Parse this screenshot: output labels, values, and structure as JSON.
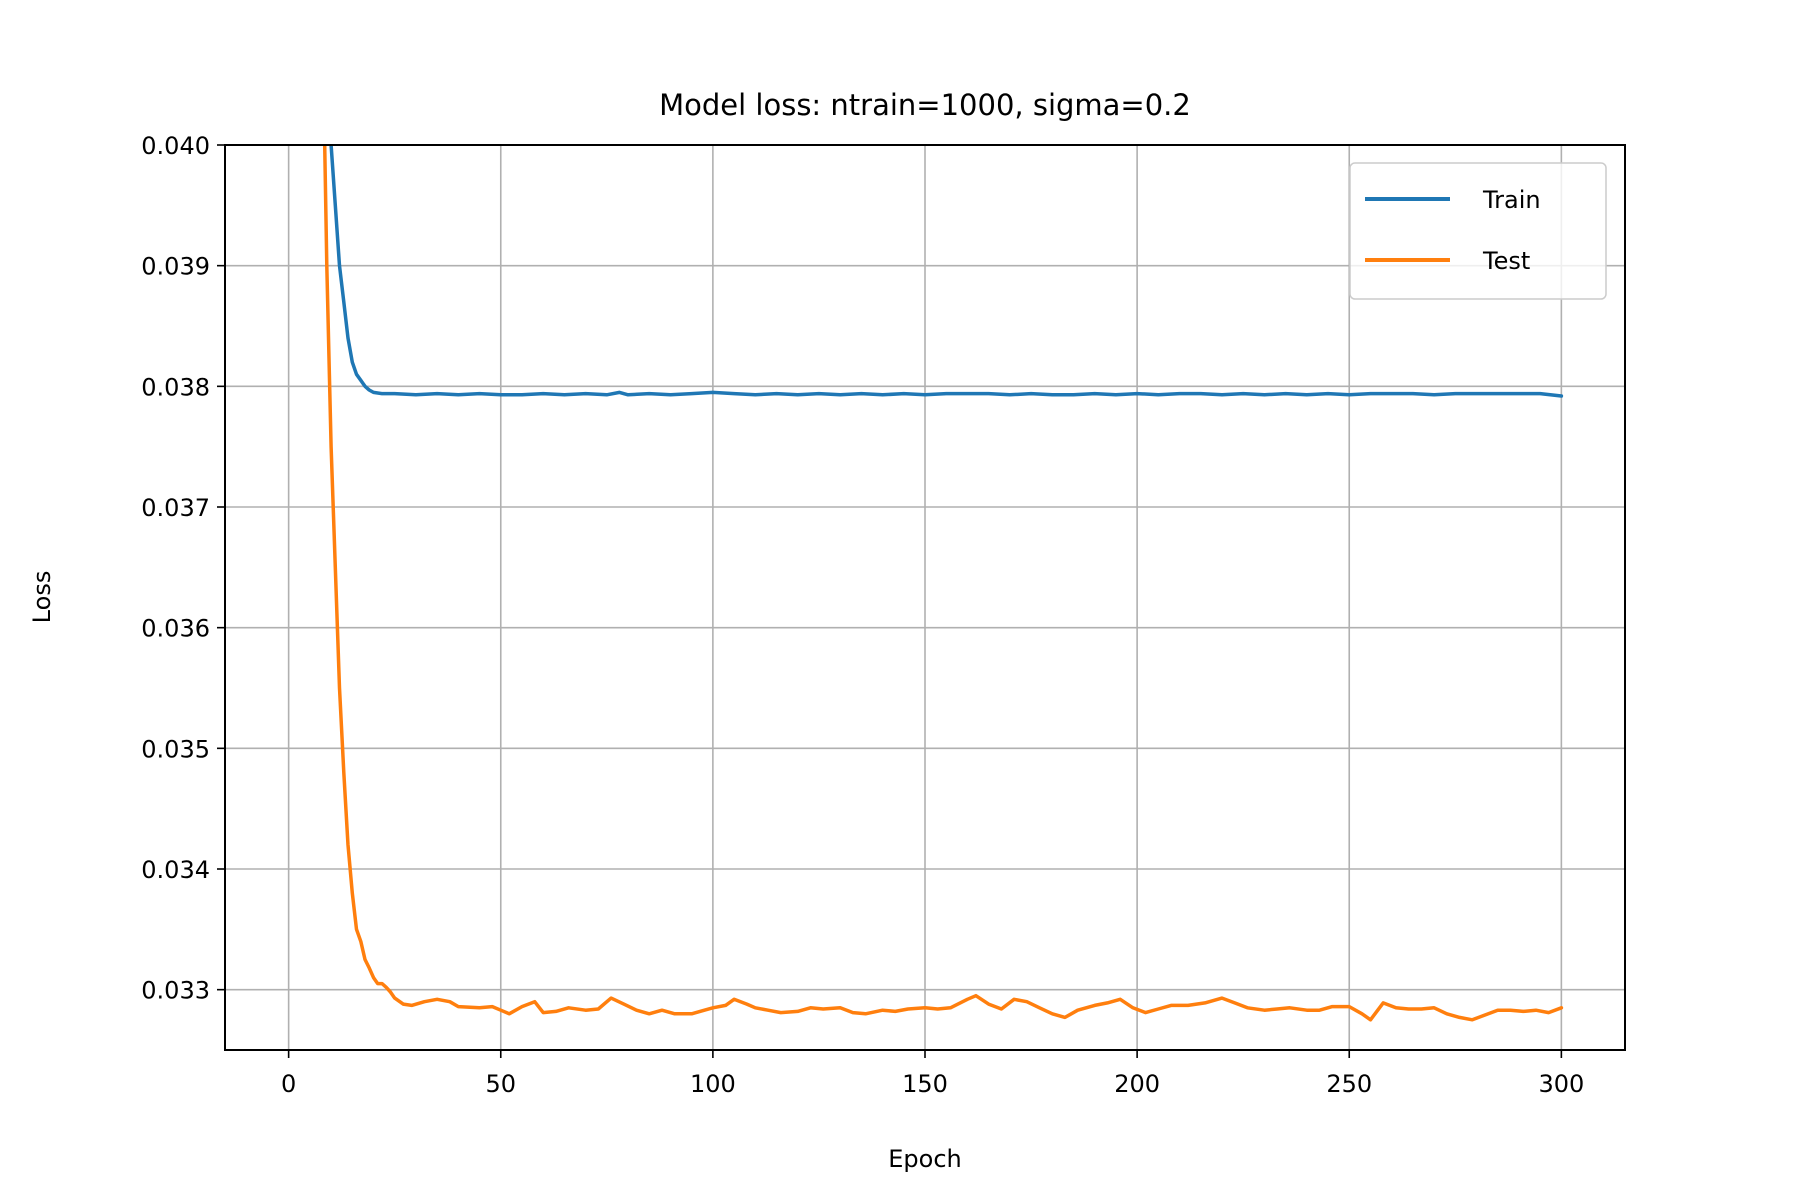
{
  "chart_data": {
    "type": "line",
    "title": "Model loss: ntrain=1000, sigma=0.2",
    "xlabel": "Epoch",
    "ylabel": "Loss",
    "xlim": [
      -15,
      315
    ],
    "ylim": [
      0.0325,
      0.04
    ],
    "xticks": [
      0,
      50,
      100,
      150,
      200,
      250,
      300
    ],
    "xtick_labels": [
      "0",
      "50",
      "100",
      "150",
      "200",
      "250",
      "300"
    ],
    "yticks": [
      0.033,
      0.034,
      0.035,
      0.036,
      0.037,
      0.038,
      0.039,
      0.04
    ],
    "ytick_labels": [
      "0.033",
      "0.034",
      "0.035",
      "0.036",
      "0.037",
      "0.038",
      "0.039",
      "0.040"
    ],
    "grid": true,
    "legend_position": "top-right",
    "series": [
      {
        "name": "Train",
        "color": "#1f77b4",
        "points": [
          [
            9,
            0.041
          ],
          [
            10,
            0.04
          ],
          [
            11,
            0.0395
          ],
          [
            12,
            0.039
          ],
          [
            13,
            0.0387
          ],
          [
            14,
            0.0384
          ],
          [
            15,
            0.0382
          ],
          [
            16,
            0.0381
          ],
          [
            17,
            0.03805
          ],
          [
            18,
            0.038
          ],
          [
            19,
            0.03797
          ],
          [
            20,
            0.03795
          ],
          [
            22,
            0.03794
          ],
          [
            25,
            0.03794
          ],
          [
            30,
            0.03793
          ],
          [
            35,
            0.03794
          ],
          [
            40,
            0.03793
          ],
          [
            45,
            0.03794
          ],
          [
            50,
            0.03793
          ],
          [
            55,
            0.03793
          ],
          [
            60,
            0.03794
          ],
          [
            65,
            0.03793
          ],
          [
            70,
            0.03794
          ],
          [
            75,
            0.03793
          ],
          [
            78,
            0.03795
          ],
          [
            80,
            0.03793
          ],
          [
            85,
            0.03794
          ],
          [
            90,
            0.03793
          ],
          [
            95,
            0.03794
          ],
          [
            100,
            0.03795
          ],
          [
            105,
            0.03794
          ],
          [
            110,
            0.03793
          ],
          [
            115,
            0.03794
          ],
          [
            120,
            0.03793
          ],
          [
            125,
            0.03794
          ],
          [
            130,
            0.03793
          ],
          [
            135,
            0.03794
          ],
          [
            140,
            0.03793
          ],
          [
            145,
            0.03794
          ],
          [
            150,
            0.03793
          ],
          [
            155,
            0.03794
          ],
          [
            160,
            0.03794
          ],
          [
            165,
            0.03794
          ],
          [
            170,
            0.03793
          ],
          [
            175,
            0.03794
          ],
          [
            180,
            0.03793
          ],
          [
            185,
            0.03793
          ],
          [
            190,
            0.03794
          ],
          [
            195,
            0.03793
          ],
          [
            200,
            0.03794
          ],
          [
            205,
            0.03793
          ],
          [
            210,
            0.03794
          ],
          [
            215,
            0.03794
          ],
          [
            220,
            0.03793
          ],
          [
            225,
            0.03794
          ],
          [
            230,
            0.03793
          ],
          [
            235,
            0.03794
          ],
          [
            240,
            0.03793
          ],
          [
            245,
            0.03794
          ],
          [
            250,
            0.03793
          ],
          [
            255,
            0.03794
          ],
          [
            260,
            0.03794
          ],
          [
            265,
            0.03794
          ],
          [
            270,
            0.03793
          ],
          [
            275,
            0.03794
          ],
          [
            280,
            0.03794
          ],
          [
            285,
            0.03794
          ],
          [
            290,
            0.03794
          ],
          [
            295,
            0.03794
          ],
          [
            300,
            0.03792
          ]
        ]
      },
      {
        "name": "Test",
        "color": "#ff7f0e",
        "points": [
          [
            8,
            0.041
          ],
          [
            9,
            0.039
          ],
          [
            10,
            0.0375
          ],
          [
            11,
            0.0365
          ],
          [
            12,
            0.0355
          ],
          [
            13,
            0.0348
          ],
          [
            14,
            0.0342
          ],
          [
            15,
            0.0338
          ],
          [
            16,
            0.0335
          ],
          [
            17,
            0.0334
          ],
          [
            18,
            0.03325
          ],
          [
            19,
            0.03318
          ],
          [
            20,
            0.0331
          ],
          [
            21,
            0.03305
          ],
          [
            22,
            0.03305
          ],
          [
            23,
            0.03302
          ],
          [
            24,
            0.03298
          ],
          [
            25,
            0.03293
          ],
          [
            27,
            0.03288
          ],
          [
            29,
            0.03287
          ],
          [
            32,
            0.0329
          ],
          [
            35,
            0.03292
          ],
          [
            38,
            0.0329
          ],
          [
            40,
            0.03286
          ],
          [
            45,
            0.03285
          ],
          [
            48,
            0.03286
          ],
          [
            50,
            0.03283
          ],
          [
            52,
            0.0328
          ],
          [
            55,
            0.03286
          ],
          [
            58,
            0.0329
          ],
          [
            60,
            0.03281
          ],
          [
            63,
            0.03282
          ],
          [
            66,
            0.03285
          ],
          [
            70,
            0.03283
          ],
          [
            73,
            0.03284
          ],
          [
            76,
            0.03293
          ],
          [
            79,
            0.03288
          ],
          [
            82,
            0.03283
          ],
          [
            85,
            0.0328
          ],
          [
            88,
            0.03283
          ],
          [
            91,
            0.0328
          ],
          [
            95,
            0.0328
          ],
          [
            98,
            0.03283
          ],
          [
            100,
            0.03285
          ],
          [
            103,
            0.03287
          ],
          [
            105,
            0.03292
          ],
          [
            108,
            0.03288
          ],
          [
            110,
            0.03285
          ],
          [
            113,
            0.03283
          ],
          [
            116,
            0.03281
          ],
          [
            120,
            0.03282
          ],
          [
            123,
            0.03285
          ],
          [
            126,
            0.03284
          ],
          [
            130,
            0.03285
          ],
          [
            133,
            0.03281
          ],
          [
            136,
            0.0328
          ],
          [
            140,
            0.03283
          ],
          [
            143,
            0.03282
          ],
          [
            146,
            0.03284
          ],
          [
            150,
            0.03285
          ],
          [
            153,
            0.03284
          ],
          [
            156,
            0.03285
          ],
          [
            160,
            0.03292
          ],
          [
            162,
            0.03295
          ],
          [
            165,
            0.03288
          ],
          [
            168,
            0.03284
          ],
          [
            171,
            0.03292
          ],
          [
            174,
            0.0329
          ],
          [
            177,
            0.03285
          ],
          [
            180,
            0.0328
          ],
          [
            183,
            0.03277
          ],
          [
            186,
            0.03283
          ],
          [
            190,
            0.03287
          ],
          [
            193,
            0.03289
          ],
          [
            196,
            0.03292
          ],
          [
            199,
            0.03285
          ],
          [
            202,
            0.03281
          ],
          [
            205,
            0.03284
          ],
          [
            208,
            0.03287
          ],
          [
            212,
            0.03287
          ],
          [
            216,
            0.03289
          ],
          [
            220,
            0.03293
          ],
          [
            223,
            0.03289
          ],
          [
            226,
            0.03285
          ],
          [
            230,
            0.03283
          ],
          [
            233,
            0.03284
          ],
          [
            236,
            0.03285
          ],
          [
            240,
            0.03283
          ],
          [
            243,
            0.03283
          ],
          [
            246,
            0.03286
          ],
          [
            250,
            0.03286
          ],
          [
            253,
            0.0328
          ],
          [
            255,
            0.03275
          ],
          [
            258,
            0.03289
          ],
          [
            261,
            0.03285
          ],
          [
            264,
            0.03284
          ],
          [
            267,
            0.03284
          ],
          [
            270,
            0.03285
          ],
          [
            273,
            0.0328
          ],
          [
            276,
            0.03277
          ],
          [
            279,
            0.03275
          ],
          [
            282,
            0.03279
          ],
          [
            285,
            0.03283
          ],
          [
            288,
            0.03283
          ],
          [
            291,
            0.03282
          ],
          [
            294,
            0.03283
          ],
          [
            297,
            0.03281
          ],
          [
            300,
            0.03285
          ]
        ]
      }
    ]
  }
}
